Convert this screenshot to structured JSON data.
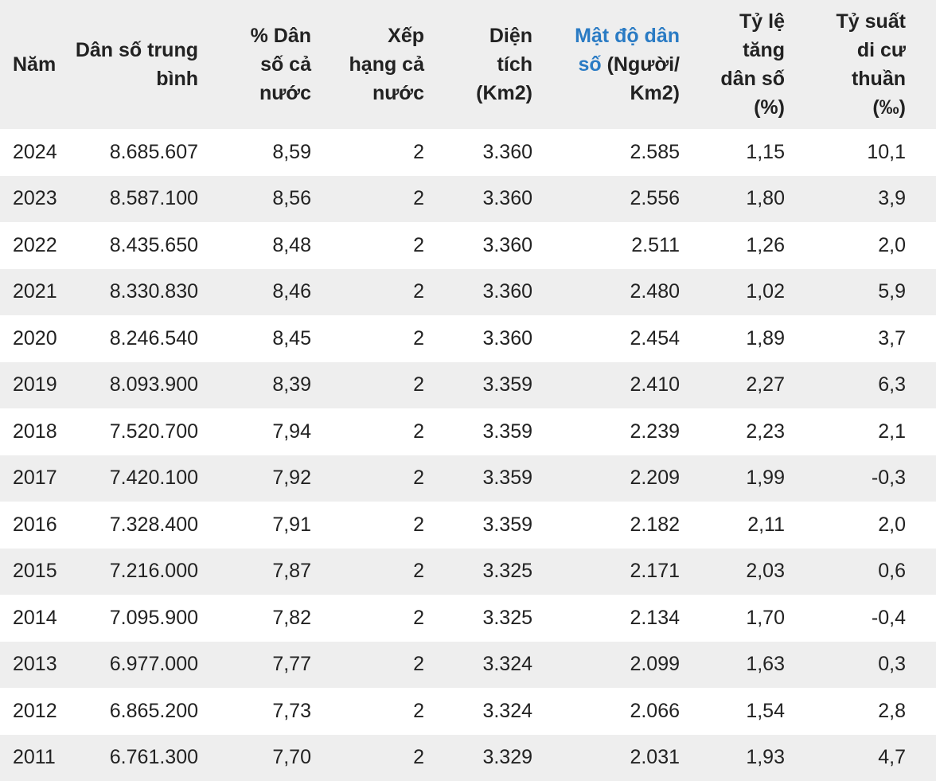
{
  "headers": {
    "year": "Năm",
    "avg_pop": "Dân số trung bình",
    "pct": "% Dân số cả nước",
    "rank": "Xếp hạng cả nước",
    "area": "Diện tích (Km2)",
    "density_link": "Mật độ dân số",
    "density_rest": " (Người/ Km2)",
    "growth": "Tỷ lệ tăng dân số (%)",
    "migration": "Tỷ suất di cư thuần (‰)"
  },
  "colors": {
    "link": "#2a7bc4",
    "stripe": "#eeeeee",
    "text": "#222222"
  },
  "rows": [
    {
      "year": "2024",
      "avg_pop": "8.685.607",
      "pct": "8,59",
      "rank": "2",
      "area": "3.360",
      "density": "2.585",
      "growth": "1,15",
      "migration": "10,1"
    },
    {
      "year": "2023",
      "avg_pop": "8.587.100",
      "pct": "8,56",
      "rank": "2",
      "area": "3.360",
      "density": "2.556",
      "growth": "1,80",
      "migration": "3,9"
    },
    {
      "year": "2022",
      "avg_pop": "8.435.650",
      "pct": "8,48",
      "rank": "2",
      "area": "3.360",
      "density": "2.511",
      "growth": "1,26",
      "migration": "2,0"
    },
    {
      "year": "2021",
      "avg_pop": "8.330.830",
      "pct": "8,46",
      "rank": "2",
      "area": "3.360",
      "density": "2.480",
      "growth": "1,02",
      "migration": "5,9"
    },
    {
      "year": "2020",
      "avg_pop": "8.246.540",
      "pct": "8,45",
      "rank": "2",
      "area": "3.360",
      "density": "2.454",
      "growth": "1,89",
      "migration": "3,7"
    },
    {
      "year": "2019",
      "avg_pop": "8.093.900",
      "pct": "8,39",
      "rank": "2",
      "area": "3.359",
      "density": "2.410",
      "growth": "2,27",
      "migration": "6,3"
    },
    {
      "year": "2018",
      "avg_pop": "7.520.700",
      "pct": "7,94",
      "rank": "2",
      "area": "3.359",
      "density": "2.239",
      "growth": "2,23",
      "migration": "2,1"
    },
    {
      "year": "2017",
      "avg_pop": "7.420.100",
      "pct": "7,92",
      "rank": "2",
      "area": "3.359",
      "density": "2.209",
      "growth": "1,99",
      "migration": "-0,3"
    },
    {
      "year": "2016",
      "avg_pop": "7.328.400",
      "pct": "7,91",
      "rank": "2",
      "area": "3.359",
      "density": "2.182",
      "growth": "2,11",
      "migration": "2,0"
    },
    {
      "year": "2015",
      "avg_pop": "7.216.000",
      "pct": "7,87",
      "rank": "2",
      "area": "3.325",
      "density": "2.171",
      "growth": "2,03",
      "migration": "0,6"
    },
    {
      "year": "2014",
      "avg_pop": "7.095.900",
      "pct": "7,82",
      "rank": "2",
      "area": "3.325",
      "density": "2.134",
      "growth": "1,70",
      "migration": "-0,4"
    },
    {
      "year": "2013",
      "avg_pop": "6.977.000",
      "pct": "7,77",
      "rank": "2",
      "area": "3.324",
      "density": "2.099",
      "growth": "1,63",
      "migration": "0,3"
    },
    {
      "year": "2012",
      "avg_pop": "6.865.200",
      "pct": "7,73",
      "rank": "2",
      "area": "3.324",
      "density": "2.066",
      "growth": "1,54",
      "migration": "2,8"
    },
    {
      "year": "2011",
      "avg_pop": "6.761.300",
      "pct": "7,70",
      "rank": "2",
      "area": "3.329",
      "density": "2.031",
      "growth": "1,93",
      "migration": "4,7"
    }
  ]
}
